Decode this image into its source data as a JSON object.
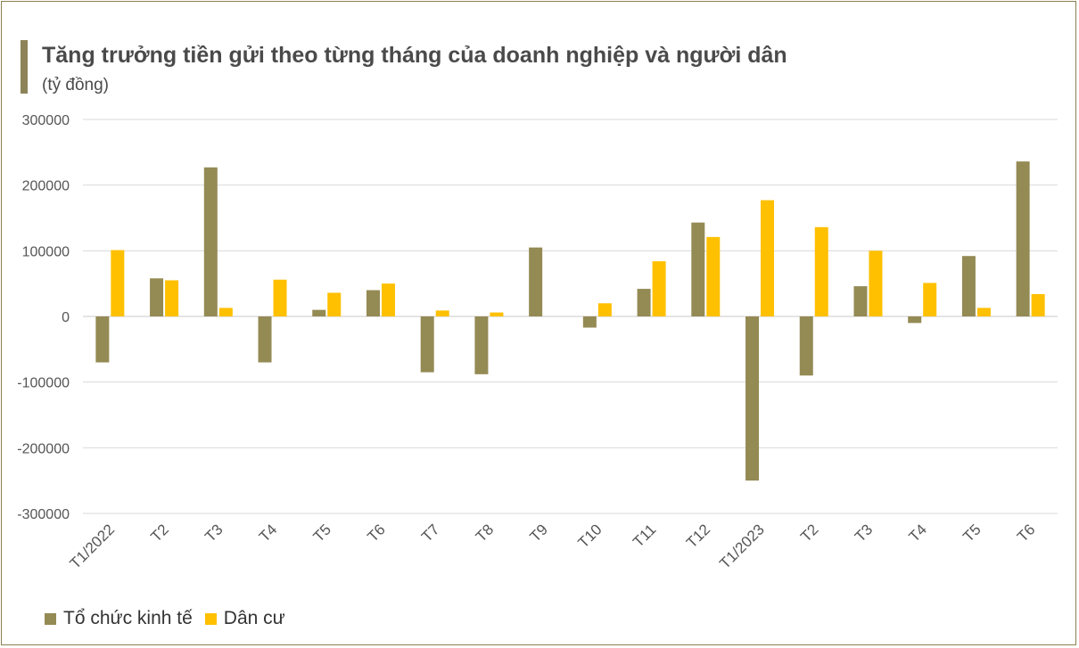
{
  "header": {
    "title": "Tăng trưởng tiền gửi theo từng tháng của doanh nghiệp và người dân",
    "subtitle": "(tỷ đồng)"
  },
  "chart_data": {
    "type": "bar",
    "title": "Tăng trưởng tiền gửi theo từng tháng của doanh nghiệp và người dân",
    "ylabel": "(tỷ đồng)",
    "xlabel": "",
    "ylim": [
      -300000,
      300000
    ],
    "yticks": [
      300000,
      200000,
      100000,
      0,
      -100000,
      -200000,
      -300000
    ],
    "ytick_labels": [
      "300000",
      "200000",
      "100000",
      "0",
      "-100000",
      "-200000",
      "-300000"
    ],
    "grid": true,
    "legend_position": "bottom-left",
    "categories": [
      "T1/2022",
      "T2",
      "T3",
      "T4",
      "T5",
      "T6",
      "T7",
      "T8",
      "T9",
      "T10",
      "T11",
      "T12",
      "T1/2023",
      "T2",
      "T3",
      "T4",
      "T5",
      "T6"
    ],
    "series": [
      {
        "name": "Tổ chức kinh tế",
        "color": "#948a54",
        "values": [
          -70000,
          58000,
          227000,
          -70000,
          10000,
          40000,
          -85000,
          -88000,
          105000,
          -17000,
          42000,
          143000,
          -250000,
          -90000,
          46000,
          -10000,
          92000,
          236000
        ]
      },
      {
        "name": "Dân cư",
        "color": "#ffc000",
        "values": [
          101000,
          55000,
          13000,
          56000,
          36000,
          50000,
          9000,
          6000,
          0,
          20000,
          84000,
          121000,
          177000,
          136000,
          100000,
          51000,
          13000,
          34000
        ]
      }
    ]
  }
}
